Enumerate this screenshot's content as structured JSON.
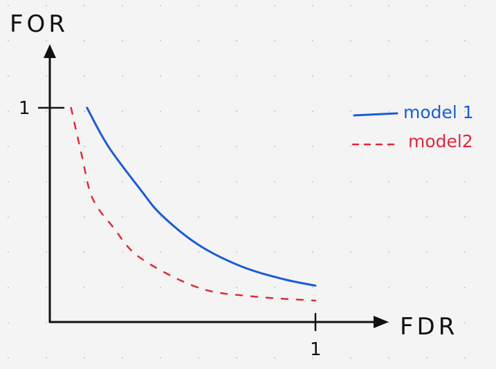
{
  "chart_data": {
    "type": "line",
    "xlabel": "FDR",
    "ylabel": "FOR",
    "xlim": [
      0,
      1
    ],
    "ylim": [
      0,
      1
    ],
    "x_ticks": [
      "1"
    ],
    "y_ticks": [
      "1"
    ],
    "grid": "dotted",
    "legend_position": "top-right",
    "series": [
      {
        "name": "model 1",
        "style": "solid",
        "color": "#1a5bd6",
        "x": [
          0.14,
          0.22,
          0.34,
          0.42,
          0.56,
          0.72,
          0.88,
          1.0
        ],
        "y": [
          1.0,
          0.82,
          0.62,
          0.5,
          0.36,
          0.26,
          0.2,
          0.17
        ]
      },
      {
        "name": "model2",
        "style": "dashed",
        "color": "#e0283a",
        "x": [
          0.08,
          0.12,
          0.16,
          0.24,
          0.34,
          0.56,
          0.76,
          1.0
        ],
        "y": [
          1.0,
          0.78,
          0.58,
          0.44,
          0.3,
          0.16,
          0.12,
          0.1
        ]
      }
    ]
  }
}
